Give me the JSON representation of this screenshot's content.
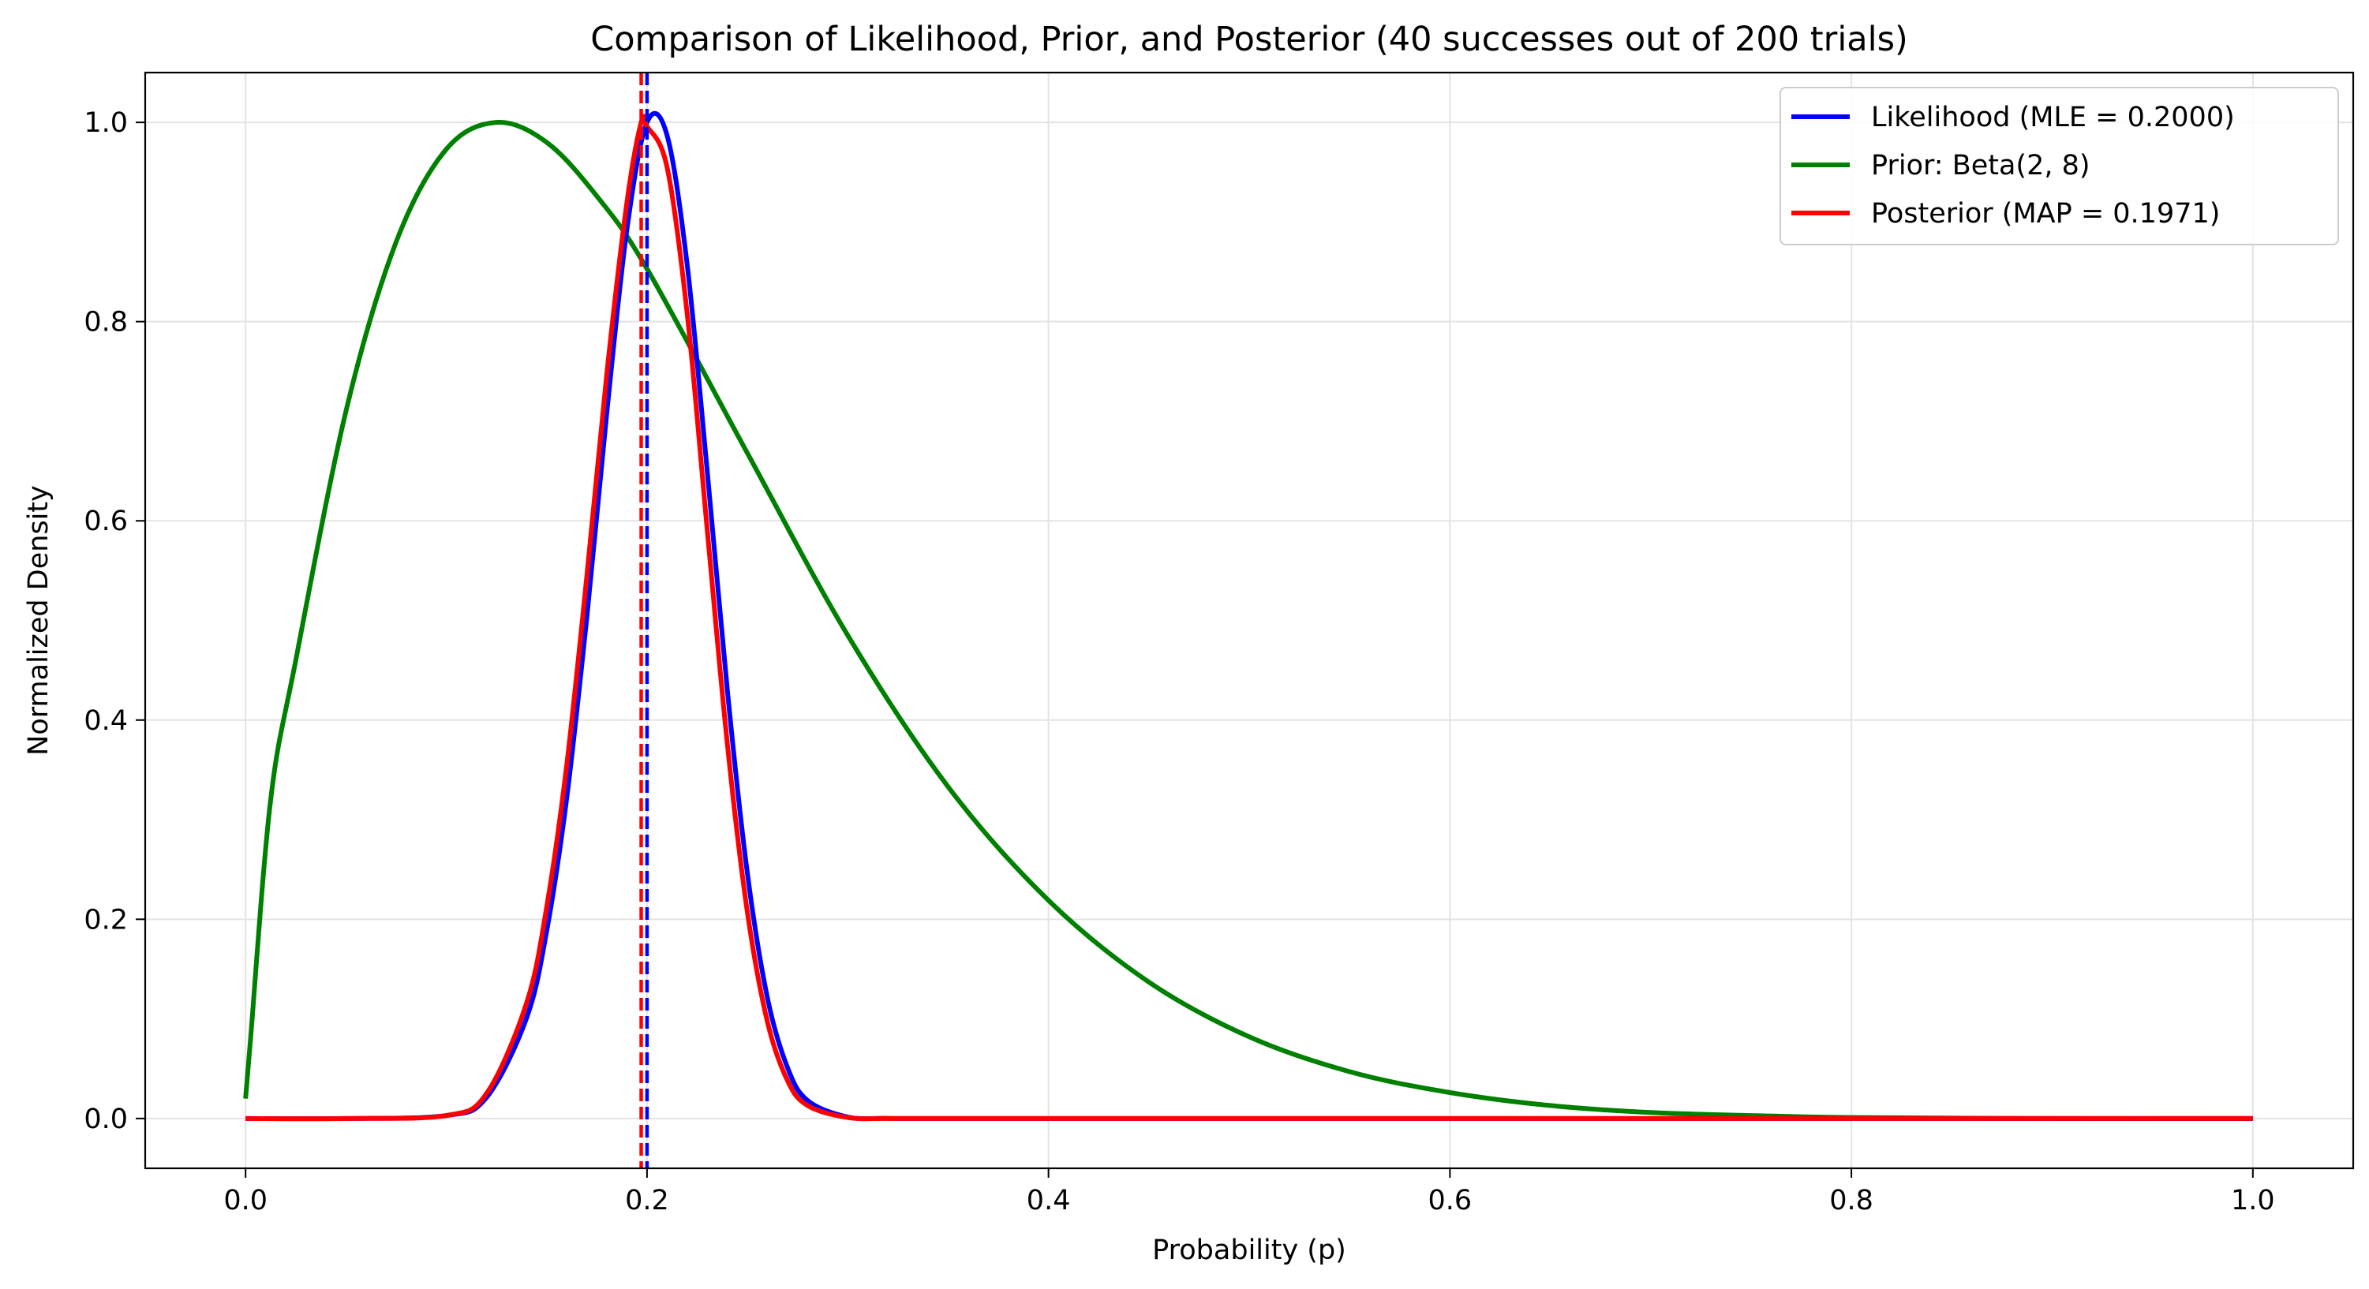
{
  "chart_data": {
    "type": "line",
    "title": "Comparison of Likelihood, Prior, and Posterior (40 successes out of 200 trials)",
    "xlabel": "Probability (p)",
    "ylabel": "Normalized Density",
    "xlim": [
      -0.05,
      1.05
    ],
    "ylim": [
      -0.05,
      1.05
    ],
    "xticks": [
      0.0,
      0.2,
      0.4,
      0.6,
      0.8,
      1.0
    ],
    "xtick_labels": [
      "0.0",
      "0.2",
      "0.4",
      "0.6",
      "0.8",
      "1.0"
    ],
    "yticks": [
      0.0,
      0.2,
      0.4,
      0.6,
      0.8,
      1.0
    ],
    "ytick_labels": [
      "0.0",
      "0.2",
      "0.4",
      "0.6",
      "0.8",
      "1.0"
    ],
    "grid": true,
    "legend_position": "top-right",
    "series": [
      {
        "name": "Likelihood (MLE = 0.2000)",
        "color": "#0000ff",
        "x": [
          0.0,
          0.05,
          0.1,
          0.12,
          0.14,
          0.15,
          0.16,
          0.17,
          0.18,
          0.19,
          0.2,
          0.21,
          0.22,
          0.23,
          0.24,
          0.25,
          0.26,
          0.27,
          0.28,
          0.3,
          0.32,
          0.35,
          0.4,
          0.5,
          0.6,
          0.8,
          1.0
        ],
        "y": [
          0.0,
          0.0,
          0.003,
          0.021,
          0.101,
          0.188,
          0.322,
          0.503,
          0.709,
          0.893,
          1.0,
          0.987,
          0.857,
          0.65,
          0.43,
          0.246,
          0.121,
          0.051,
          0.018,
          0.0015,
          0.0001,
          0.0,
          0.0,
          0.0,
          0.0,
          0.0,
          0.0
        ]
      },
      {
        "name": "Prior: Beta(2, 8)",
        "color": "#008000",
        "x": [
          0.0,
          0.0025,
          0.0125,
          0.025,
          0.05,
          0.075,
          0.1,
          0.125,
          0.15,
          0.175,
          0.2,
          0.25,
          0.3,
          0.35,
          0.4,
          0.45,
          0.5,
          0.55,
          0.6,
          0.65,
          0.7,
          0.75,
          0.8,
          0.9,
          1.0
        ],
        "y": [
          0.02,
          0.08,
          0.32,
          0.46,
          0.71,
          0.88,
          0.973,
          1.0,
          0.98,
          0.926,
          0.853,
          0.668,
          0.485,
          0.333,
          0.219,
          0.137,
          0.082,
          0.047,
          0.026,
          0.013,
          0.006,
          0.003,
          0.001,
          0.0,
          0.0
        ]
      },
      {
        "name": "Posterior (MAP = 0.1971)",
        "color": "#ff0000",
        "x": [
          0.0,
          0.05,
          0.1,
          0.12,
          0.14,
          0.15,
          0.16,
          0.17,
          0.18,
          0.19,
          0.1971,
          0.2,
          0.21,
          0.22,
          0.23,
          0.24,
          0.25,
          0.26,
          0.27,
          0.28,
          0.3,
          0.32,
          0.35,
          0.4,
          0.5,
          0.6,
          0.8,
          1.0
        ],
        "y": [
          0.0,
          0.0,
          0.003,
          0.025,
          0.116,
          0.212,
          0.355,
          0.544,
          0.748,
          0.92,
          1.0,
          0.996,
          0.955,
          0.808,
          0.591,
          0.376,
          0.207,
          0.097,
          0.038,
          0.013,
          0.001,
          0.0,
          0.0,
          0.0,
          0.0,
          0.0,
          0.0,
          0.0
        ]
      }
    ],
    "vertical_lines": [
      {
        "x": 0.2,
        "color": "#0000ff",
        "style": "dashed"
      },
      {
        "x": 0.1971,
        "color": "#ff0000",
        "style": "dashed"
      }
    ]
  }
}
